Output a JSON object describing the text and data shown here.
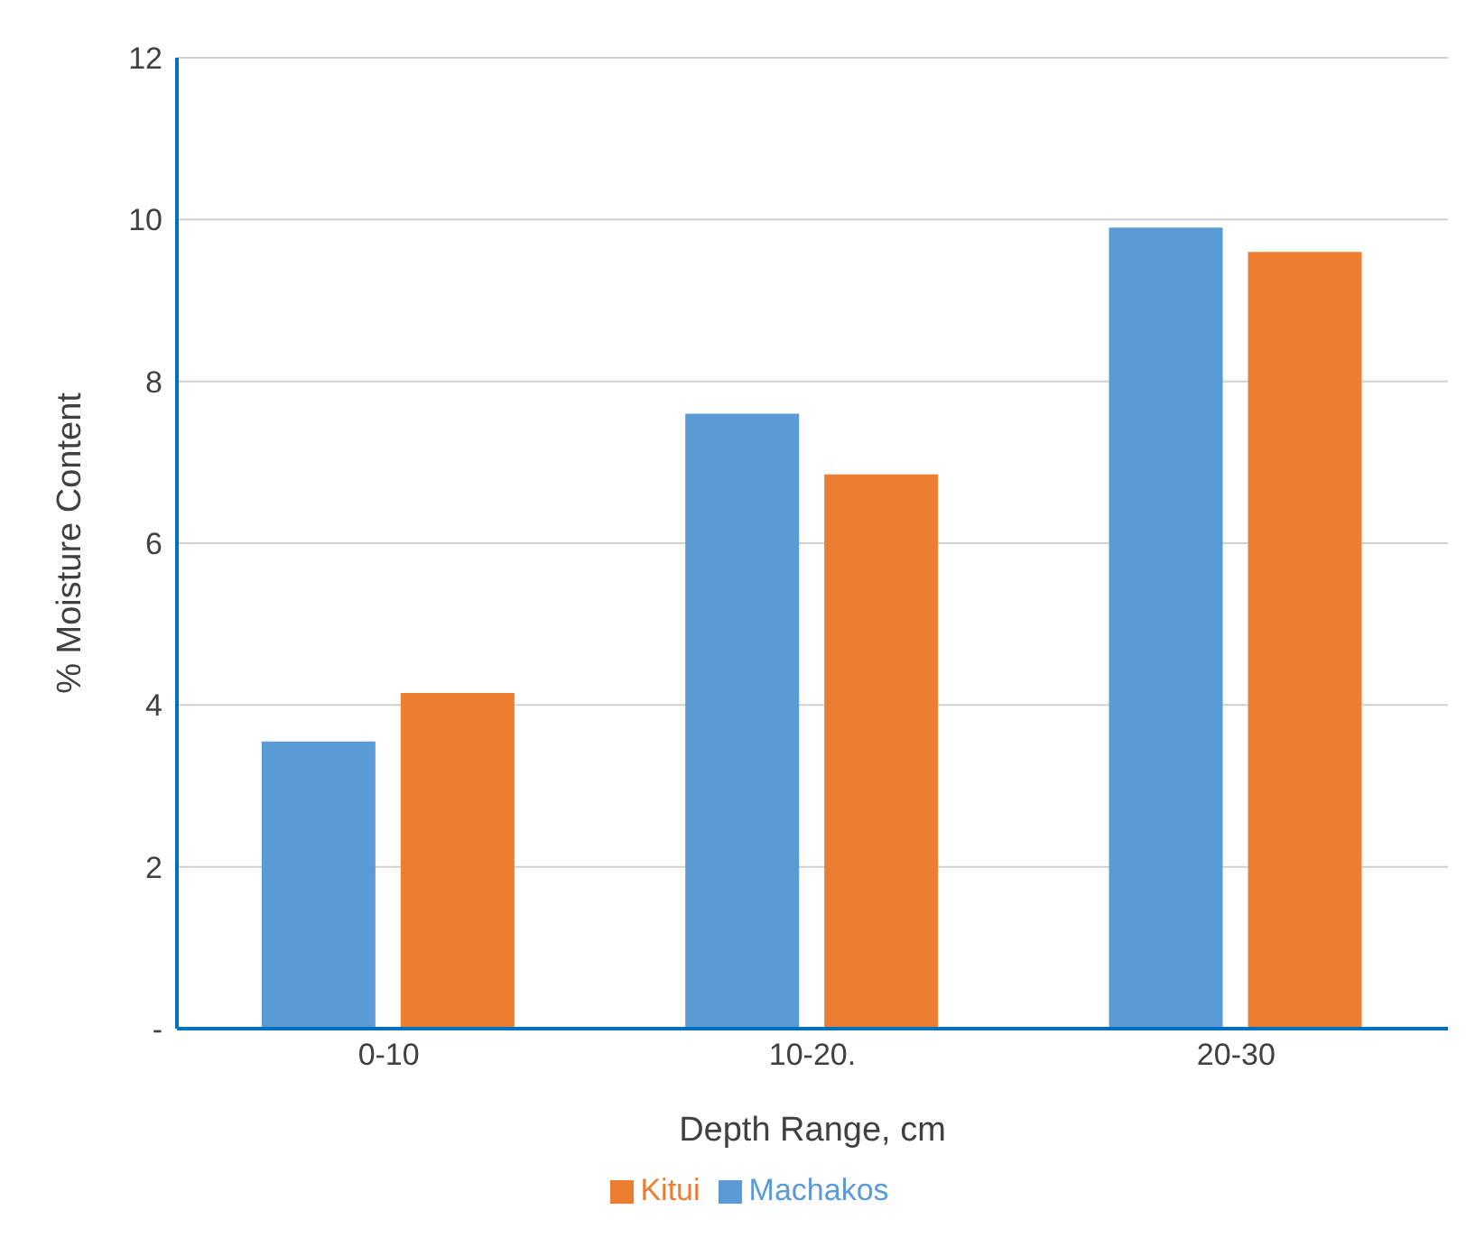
{
  "chart_data": {
    "type": "bar",
    "xlabel": "Depth Range, cm",
    "ylabel": "% Moisture Content",
    "categories": [
      "0-10",
      "10-20.",
      "20-30"
    ],
    "series": [
      {
        "name": "Machakos",
        "color": "#5b9bd5",
        "values": [
          3.55,
          7.6,
          9.9
        ]
      },
      {
        "name": "Kitui",
        "color": "#ed7d31",
        "values": [
          4.15,
          6.85,
          9.6
        ]
      }
    ],
    "ylim": [
      0,
      12
    ],
    "yticks": [
      {
        "value": 0,
        "label": "-"
      },
      2,
      4,
      6,
      8,
      10,
      12
    ],
    "grid": "y",
    "legend": "bottom"
  }
}
